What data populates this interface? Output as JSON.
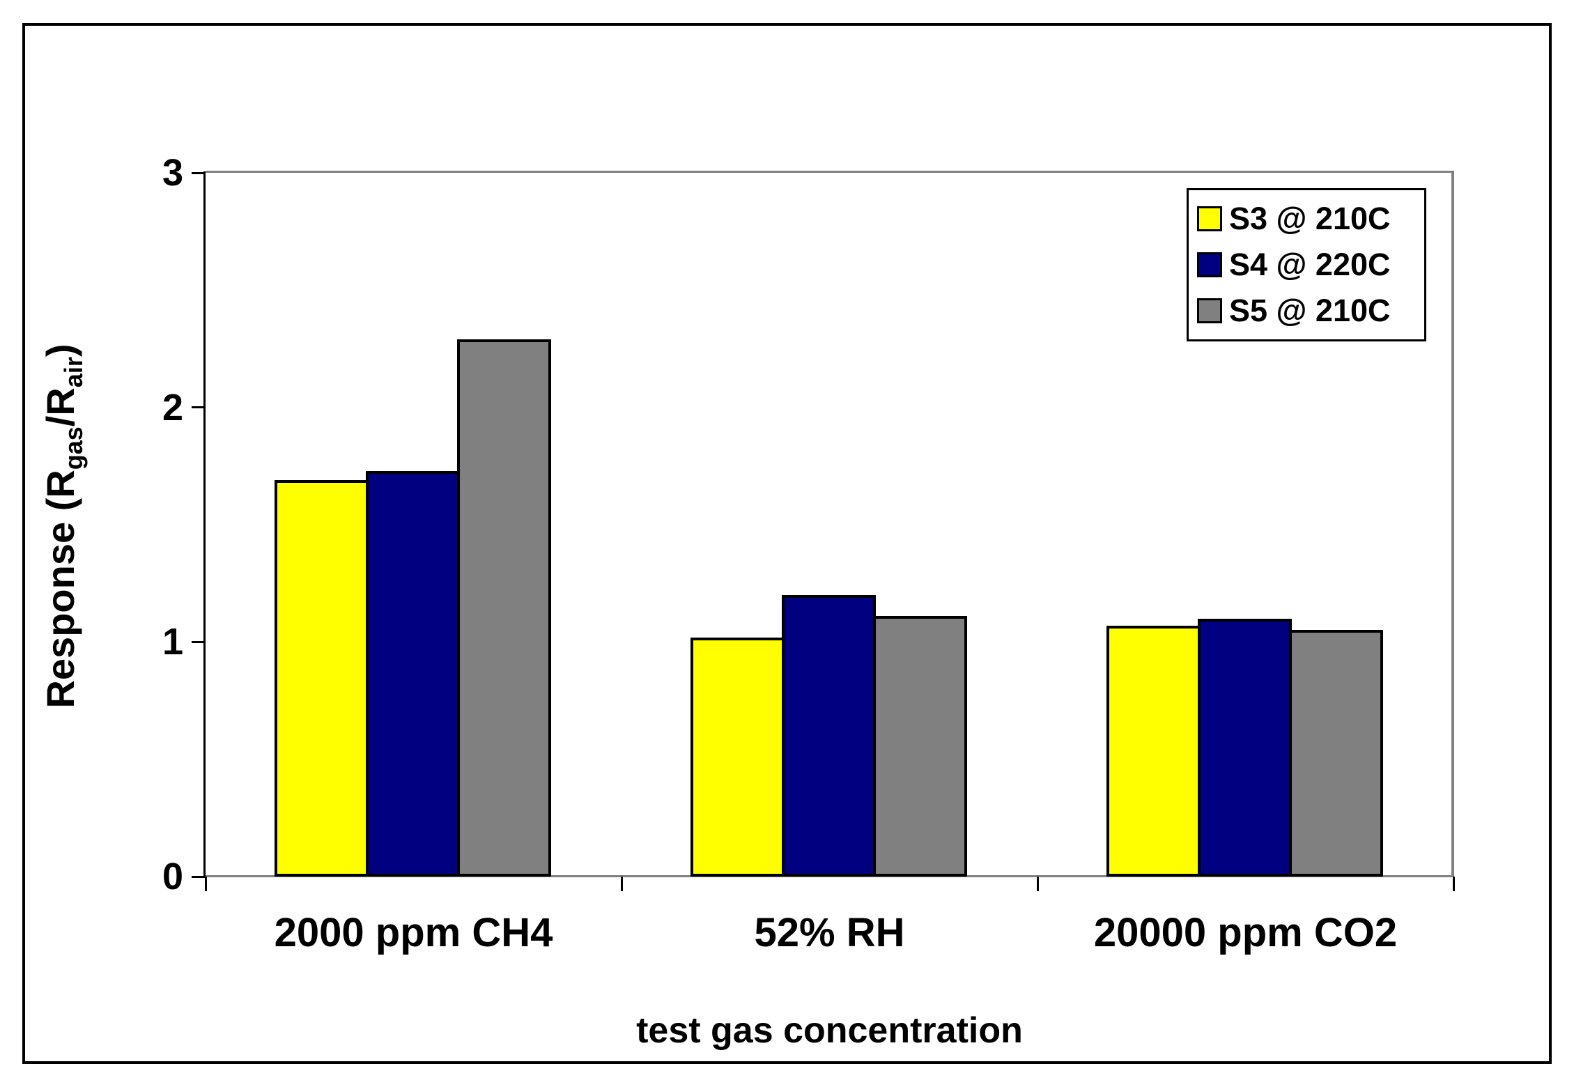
{
  "chart_data": {
    "type": "bar",
    "xlabel": "test gas concentration",
    "ylabel": "Response (Rgas/Rair)",
    "ylabel_rich": [
      {
        "text": "Response (R"
      },
      {
        "text": "gas"
      },
      {
        "text": "/R"
      },
      {
        "text": "air"
      },
      {
        "text": ")"
      }
    ],
    "categories": [
      "2000 ppm CH4",
      "52% RH",
      "20000 ppm CO2"
    ],
    "series": [
      {
        "name": "S3 @ 210C",
        "color": "#FFFF00",
        "values": [
          1.69,
          1.02,
          1.07
        ]
      },
      {
        "name": "S4 @ 220C",
        "color": "#000080",
        "values": [
          1.73,
          1.2,
          1.1
        ]
      },
      {
        "name": "S5 @ 210C",
        "color": "#808080",
        "values": [
          2.29,
          1.11,
          1.05
        ]
      }
    ],
    "ylim": [
      0,
      3
    ],
    "yticks_top_to_bottom": [
      "3",
      "2",
      "1",
      "0"
    ],
    "grid": false,
    "legend_position": "top-right-inside",
    "colors": {
      "axis_line": "#000000",
      "plot_border": "#808080",
      "figure_border": "#000000",
      "background": "#FFFFFF",
      "bar_outline": "#000000"
    }
  }
}
